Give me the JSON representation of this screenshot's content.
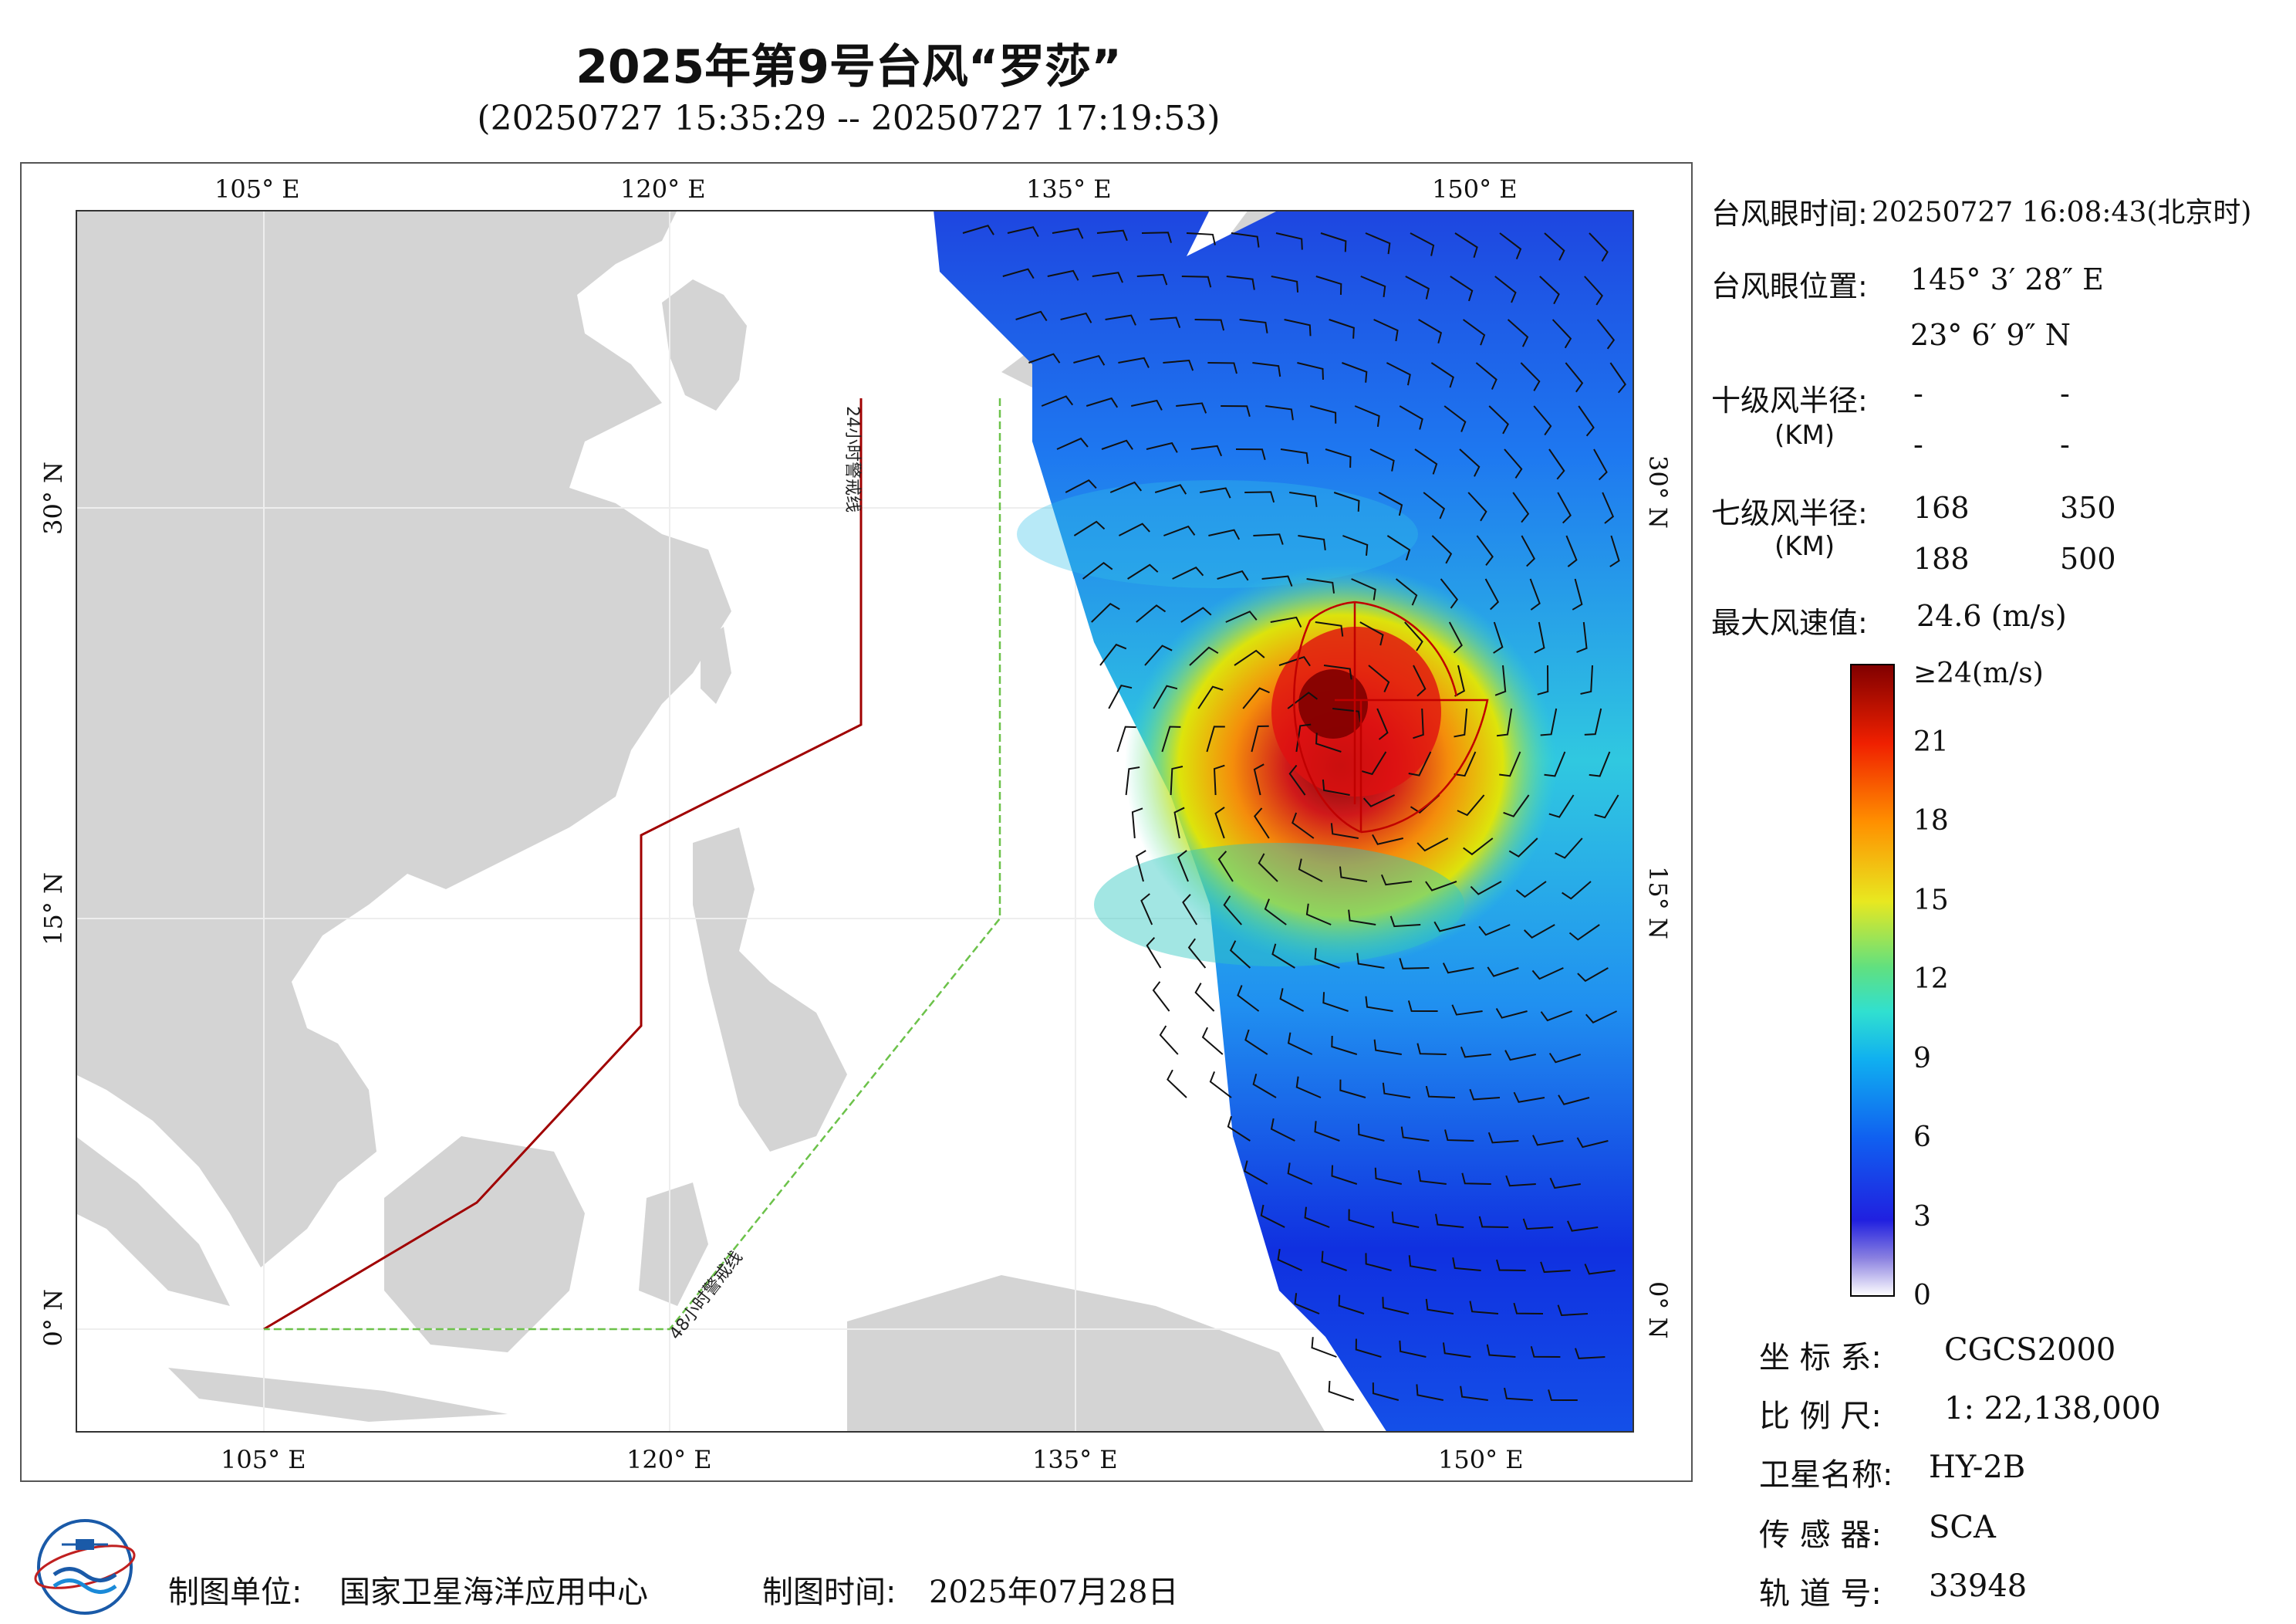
{
  "title": "2025年第9号台风“罗莎”",
  "subtitle": "(20250727 15:35:29 -- 20250727 17:19:53)",
  "map": {
    "lon_ticks": [
      "105° E",
      "120° E",
      "135° E",
      "150° E"
    ],
    "lat_ticks": [
      "30° N",
      "15° N",
      "0° N"
    ],
    "warning_line_24h": "24小时警戒线",
    "warning_line_48h": "48小时警戒线",
    "colors": {
      "land": "#d4d4d4",
      "ocean": "#ffffff",
      "line24": "#a00000",
      "line48": "#6cc24a",
      "wind_radius": "#c00000"
    }
  },
  "info": {
    "eye_time_label": "台风眼时间:",
    "eye_time_value": "20250727 16:08:43(北京时)",
    "eye_pos_label": "台风眼位置:",
    "eye_pos_lon": "145° 3′ 28″ E",
    "eye_pos_lat": "23° 6′ 9″ N",
    "r10_label": "十级风半径:",
    "r10_unit": "(KM)",
    "r10_values": [
      "-",
      "-",
      "-",
      "-"
    ],
    "r7_label": "七级风半径:",
    "r7_unit": "(KM)",
    "r7_values": [
      "168",
      "350",
      "188",
      "500"
    ],
    "max_wind_label": "最大风速值:",
    "max_wind_value": "24.6 (m/s)"
  },
  "colorbar": {
    "ticks": [
      "≥24(m/s)",
      "21",
      "18",
      "15",
      "12",
      "9",
      "6",
      "3",
      "0"
    ],
    "tick_values": [
      24,
      21,
      18,
      15,
      12,
      9,
      6,
      3,
      0
    ],
    "range": [
      0,
      24
    ]
  },
  "meta": {
    "crs_label": "坐 标 系:",
    "crs_value": "CGCS2000",
    "scale_label": "比 例 尺:",
    "scale_value": "1: 22,138,000",
    "sat_label": "卫星名称:",
    "sat_value": "HY-2B",
    "sensor_label": "传 感 器:",
    "sensor_value": "SCA",
    "orbit_label": "轨 道 号:",
    "orbit_value": "33948"
  },
  "footer": {
    "maker_label": "制图单位:",
    "maker_value": "国家卫星海洋应用中心",
    "date_label": "制图时间:",
    "date_value": "2025年07月28日"
  }
}
